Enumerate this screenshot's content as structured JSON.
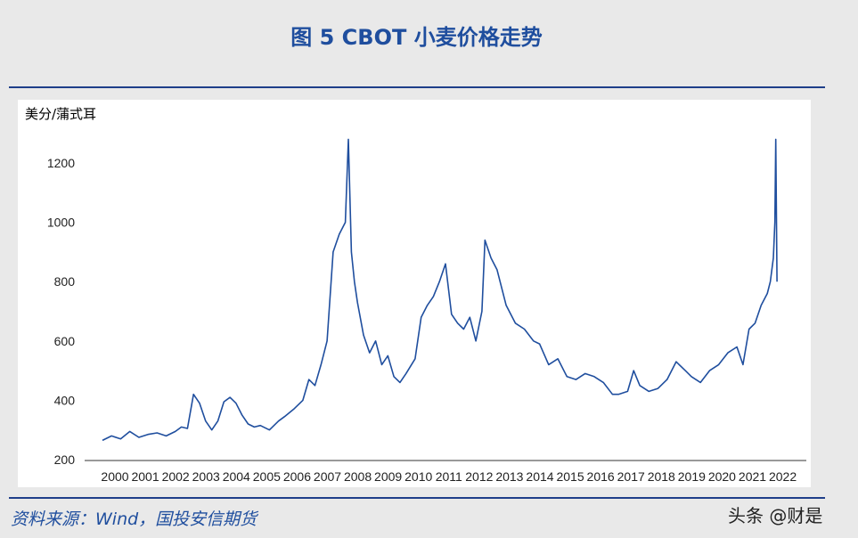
{
  "title": "图 5 CBOT 小麦价格走势",
  "source": "资料来源：Wind，国投安信期货",
  "watermark": "头条 @财是",
  "chart_data": {
    "type": "line",
    "title": "图 5 CBOT 小麦价格走势",
    "ylabel": "美分/蒲式耳",
    "xlabel": "",
    "ylim": [
      200,
      1300
    ],
    "xlim": [
      2000,
      2022.6
    ],
    "yticks": [
      200,
      400,
      600,
      800,
      1000,
      1200
    ],
    "xticks": [
      "2000",
      "2001",
      "2002",
      "2003",
      "2004",
      "2005",
      "2006",
      "2007",
      "2008",
      "2009",
      "2010",
      "2011",
      "2012",
      "2013",
      "2014",
      "2015",
      "2016",
      "2017",
      "2018",
      "2019",
      "2020",
      "2021",
      "2022"
    ],
    "line_color": "#1f4e9e",
    "series": [
      {
        "x": [
          2000.0,
          2000.3,
          2000.6,
          2000.9,
          2001.2,
          2001.5,
          2001.8,
          2002.1,
          2002.4,
          2002.6,
          2002.8,
          2003.0,
          2003.2,
          2003.4,
          2003.6,
          2003.8,
          2004.0,
          2004.2,
          2004.4,
          2004.6,
          2004.8,
          2005.0,
          2005.2,
          2005.5,
          2005.8,
          2006.0,
          2006.3,
          2006.6,
          2006.8,
          2007.0,
          2007.2,
          2007.4,
          2007.6,
          2007.8,
          2008.0,
          2008.1,
          2008.2,
          2008.3,
          2008.4,
          2008.6,
          2008.8,
          2009.0,
          2009.2,
          2009.4,
          2009.6,
          2009.8,
          2010.0,
          2010.3,
          2010.5,
          2010.7,
          2010.9,
          2011.1,
          2011.3,
          2011.5,
          2011.7,
          2011.9,
          2012.1,
          2012.3,
          2012.5,
          2012.6,
          2012.8,
          2013.0,
          2013.3,
          2013.6,
          2013.9,
          2014.2,
          2014.4,
          2014.7,
          2015.0,
          2015.3,
          2015.6,
          2015.9,
          2016.2,
          2016.5,
          2016.8,
          2017.0,
          2017.3,
          2017.5,
          2017.7,
          2018.0,
          2018.3,
          2018.6,
          2018.9,
          2019.2,
          2019.4,
          2019.7,
          2020.0,
          2020.3,
          2020.6,
          2020.9,
          2021.1,
          2021.3,
          2021.5,
          2021.7,
          2021.9,
          2022.0,
          2022.1,
          2022.15,
          2022.18,
          2022.22
        ],
        "y": [
          265,
          280,
          270,
          295,
          275,
          285,
          290,
          280,
          295,
          310,
          305,
          420,
          390,
          330,
          300,
          330,
          395,
          410,
          390,
          350,
          320,
          310,
          315,
          300,
          330,
          345,
          370,
          400,
          470,
          450,
          520,
          600,
          900,
          960,
          1000,
          1280,
          900,
          800,
          730,
          620,
          560,
          600,
          520,
          550,
          480,
          460,
          490,
          540,
          680,
          720,
          750,
          800,
          860,
          690,
          660,
          640,
          680,
          600,
          700,
          940,
          880,
          840,
          720,
          660,
          640,
          600,
          590,
          520,
          540,
          480,
          470,
          490,
          480,
          460,
          420,
          420,
          430,
          500,
          450,
          430,
          440,
          470,
          530,
          500,
          480,
          460,
          500,
          520,
          560,
          580,
          520,
          640,
          660,
          720,
          760,
          800,
          880,
          1000,
          1280,
          800
        ]
      }
    ]
  }
}
